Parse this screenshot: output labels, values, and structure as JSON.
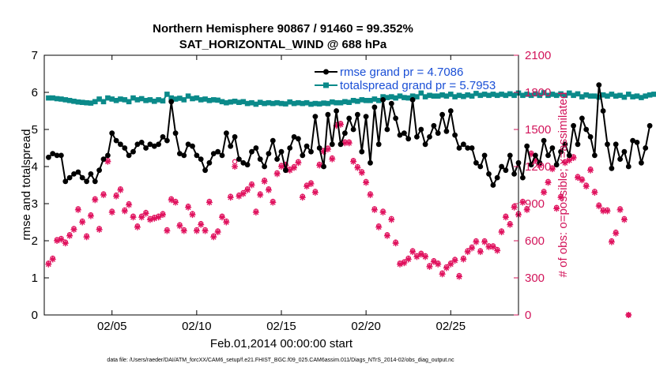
{
  "chart_data": {
    "type": "line",
    "title": "Northern Hemisphere 90867 / 91460 = 99.352%",
    "subtitle": "SAT_HORIZONTAL_WIND @ 688 hPa",
    "xlabel": "Feb.01,2014 00:00:00 start",
    "ylabel": "rmse and totalspread",
    "y2label": "# of obs: o=possible; ×=assimilated",
    "footnote": "data file: /Users/raeder/DAI/ATM_forcXX/CAM6_setup/f.e21.FHIST_BGC.f09_025.CAM6assim.011/Diags_NTrS_2014-02/obs_diag_output.nc",
    "xlim": [
      1.0,
      29.0
    ],
    "ylim": [
      0,
      7
    ],
    "y2lim": [
      0,
      2100
    ],
    "x_ticks": [
      5,
      10,
      15,
      20,
      25
    ],
    "x_ticklabels": [
      "02/05",
      "02/10",
      "02/15",
      "02/20",
      "02/25"
    ],
    "y_ticks": [
      "0",
      "1",
      "2",
      "3",
      "4",
      "5",
      "6",
      "7"
    ],
    "y2_ticks": [
      "0",
      "300",
      "600",
      "900",
      "1200",
      "1500",
      "1800",
      "2100"
    ],
    "legend": "top-right",
    "x_start": 1.25,
    "x_step": 0.25,
    "series": [
      {
        "name": "rmse grand pr = 4.7086",
        "color": "#000000",
        "axis": "left",
        "marker": "filled-circle",
        "values": [
          4.25,
          4.35,
          4.3,
          4.3,
          3.6,
          3.7,
          3.8,
          3.85,
          3.7,
          3.6,
          3.8,
          3.6,
          3.9,
          4.2,
          4.3,
          4.9,
          4.7,
          4.6,
          4.5,
          4.3,
          4.4,
          4.6,
          4.65,
          4.5,
          4.6,
          4.55,
          4.6,
          4.8,
          4.7,
          5.75,
          4.9,
          4.35,
          4.3,
          4.6,
          4.55,
          4.3,
          4.2,
          3.9,
          4.1,
          4.35,
          4.4,
          4.3,
          4.9,
          4.55,
          4.8,
          4.2,
          4.1,
          4.05,
          4.4,
          4.5,
          4.2,
          4.0,
          4.35,
          4.7,
          4.2,
          4.4,
          3.9,
          4.5,
          4.8,
          4.75,
          4.3,
          4.55,
          4.4,
          5.35,
          4.5,
          4.0,
          5.4,
          4.6,
          5.5,
          4.6,
          4.9,
          5.3,
          5.0,
          5.4,
          4.4,
          5.35,
          4.1,
          5.6,
          4.6,
          5.8,
          5.0,
          5.7,
          5.3,
          4.85,
          4.9,
          4.75,
          5.8,
          4.8,
          5.0,
          4.6,
          4.8,
          5.1,
          4.9,
          5.4,
          4.95,
          5.5,
          4.85,
          4.5,
          4.6,
          4.5,
          4.5,
          4.1,
          4.0,
          4.3,
          3.8,
          3.5,
          3.7,
          4.0,
          3.9,
          4.3,
          3.8,
          4.1,
          3.7,
          4.55,
          4.05,
          4.3,
          4.1,
          4.7,
          4.3,
          4.5,
          4.05,
          4.4,
          4.6,
          4.3,
          5.1,
          4.6,
          5.3,
          5.0,
          4.8,
          4.3,
          6.2,
          5.5,
          4.6,
          3.95,
          4.6,
          4.2,
          4.4,
          4.0,
          4.7,
          4.65,
          4.1,
          4.5,
          5.1
        ]
      },
      {
        "name": "totalspread grand pr = 5.7953",
        "color": "#0b8a8a",
        "axis": "left",
        "marker": "filled-square",
        "values": [
          5.85,
          5.85,
          5.83,
          5.82,
          5.8,
          5.78,
          5.76,
          5.74,
          5.73,
          5.72,
          5.71,
          5.75,
          5.82,
          5.75,
          5.85,
          5.82,
          5.78,
          5.82,
          5.8,
          5.75,
          5.85,
          5.8,
          5.83,
          5.78,
          5.8,
          5.76,
          5.8,
          5.77,
          5.95,
          5.85,
          5.82,
          5.84,
          5.8,
          5.9,
          5.83,
          5.85,
          5.8,
          5.82,
          5.78,
          5.8,
          5.79,
          5.75,
          5.72,
          5.74,
          5.76,
          5.73,
          5.75,
          5.7,
          5.72,
          5.68,
          5.73,
          5.7,
          5.72,
          5.7,
          5.72,
          5.7,
          5.69,
          5.74,
          5.7,
          5.72,
          5.7,
          5.72,
          5.68,
          5.7,
          5.69,
          5.71,
          5.7,
          5.74,
          5.72,
          5.72,
          5.75,
          5.73,
          5.78,
          5.76,
          5.8,
          5.78,
          5.78,
          5.82,
          5.78,
          5.88,
          5.86,
          5.88,
          5.85,
          5.9,
          5.86,
          5.85,
          5.9,
          5.88,
          5.98,
          5.88,
          5.92,
          5.9,
          5.9,
          5.93,
          5.9,
          5.95,
          5.88,
          5.92,
          5.89,
          5.93,
          5.9,
          5.97,
          5.92,
          5.95,
          5.92,
          5.95,
          5.92,
          5.95,
          5.92,
          5.96,
          5.92,
          5.98,
          5.92,
          5.95,
          5.92,
          5.96,
          5.92,
          5.99,
          5.92,
          5.95,
          5.92,
          5.96,
          5.92,
          5.98,
          5.92,
          5.96,
          5.88,
          5.93,
          5.9,
          5.9,
          5.87,
          5.93,
          5.9,
          5.95,
          5.9,
          5.92,
          5.87,
          5.95,
          5.88,
          5.9,
          5.86,
          5.9,
          5.93,
          5.95
        ]
      },
      {
        "name": "possible",
        "color": "#e0125e",
        "axis": "right",
        "marker": "open-circle",
        "values": [
          420,
          460,
          610,
          620,
          590,
          650,
          700,
          860,
          760,
          640,
          810,
          940,
          700,
          980,
          1250,
          840,
          970,
          1020,
          850,
          900,
          800,
          720,
          800,
          830,
          780,
          790,
          800,
          820,
          690,
          940,
          920,
          730,
          690,
          880,
          820,
          690,
          740,
          690,
          920,
          640,
          680,
          800,
          760,
          960,
          1240,
          970,
          990,
          1020,
          1060,
          840,
          980,
          1090,
          1020,
          920,
          1150,
          1210,
          1220,
          1180,
          1200,
          1240,
          960,
          1050,
          1070,
          1000,
          1220,
          1330,
          1350,
          1270,
          1540,
          1550,
          1400,
          1400,
          1250,
          1200,
          1160,
          1080,
          980,
          860,
          720,
          840,
          650,
          780,
          590,
          420,
          430,
          460,
          520,
          480,
          500,
          480,
          400,
          440,
          420,
          340,
          390,
          420,
          450,
          320,
          460,
          520,
          550,
          600,
          520,
          600,
          560,
          560,
          530,
          680,
          800,
          740,
          880,
          820,
          920,
          860,
          1310,
          1260,
          1220,
          1000,
          1080,
          1190,
          870,
          960,
          1240,
          1260,
          1280,
          1120,
          1100,
          1050,
          1180,
          1000,
          890,
          850,
          850,
          600,
          670,
          860,
          780,
          0
        ]
      },
      {
        "name": "assimilated",
        "color": "#e0125e",
        "axis": "right",
        "marker": "asterisk",
        "values": [
          410,
          450,
          600,
          610,
          580,
          640,
          690,
          850,
          750,
          630,
          800,
          930,
          690,
          970,
          1240,
          830,
          960,
          1010,
          840,
          890,
          790,
          710,
          790,
          820,
          770,
          780,
          790,
          810,
          680,
          930,
          910,
          720,
          680,
          870,
          810,
          680,
          730,
          680,
          910,
          630,
          670,
          790,
          750,
          950,
          1200,
          960,
          980,
          1010,
          1050,
          830,
          970,
          1080,
          1010,
          910,
          1140,
          1200,
          1210,
          1170,
          1190,
          1230,
          950,
          1040,
          1060,
          990,
          1210,
          1320,
          1340,
          1260,
          1530,
          1540,
          1390,
          1390,
          1240,
          1190,
          1150,
          1070,
          970,
          850,
          710,
          830,
          640,
          770,
          580,
          410,
          420,
          450,
          510,
          470,
          490,
          470,
          390,
          430,
          410,
          330,
          380,
          410,
          440,
          310,
          450,
          510,
          540,
          590,
          510,
          590,
          550,
          550,
          520,
          670,
          790,
          730,
          870,
          810,
          910,
          850,
          1300,
          1250,
          1210,
          990,
          1070,
          1180,
          860,
          950,
          1230,
          1250,
          1270,
          1110,
          1090,
          1040,
          1170,
          990,
          880,
          840,
          840,
          590,
          660,
          850,
          770,
          0
        ]
      }
    ]
  }
}
